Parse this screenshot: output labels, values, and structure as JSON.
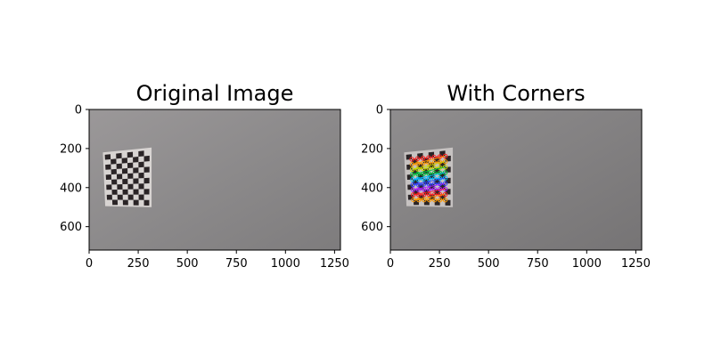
{
  "figure": {
    "panels": [
      {
        "title": "Original Image",
        "image": "checkerboard-photo",
        "x_ticks": [
          "0",
          "250",
          "500",
          "750",
          "1000",
          "1250"
        ],
        "y_ticks": [
          "0",
          "200",
          "400",
          "600"
        ],
        "x_range": [
          0,
          1280
        ],
        "y_range": [
          720,
          0
        ],
        "show_corners": false
      },
      {
        "title": "With Corners",
        "image": "checkerboard-photo-with-detected-corners",
        "x_ticks": [
          "0",
          "250",
          "500",
          "750",
          "1000",
          "1250"
        ],
        "y_ticks": [
          "0",
          "200",
          "400",
          "600"
        ],
        "x_range": [
          0,
          1280
        ],
        "y_range": [
          720,
          0
        ],
        "show_corners": true
      }
    ],
    "colors": {
      "wall": "#8e8c8d",
      "board_dark": "#2a2426",
      "board_light": "#d8d4d2",
      "corner_rows": [
        "#ff2020",
        "#ff9a00",
        "#c8d800",
        "#00c040",
        "#00b8ff",
        "#3040ff",
        "#b020ff"
      ]
    }
  }
}
